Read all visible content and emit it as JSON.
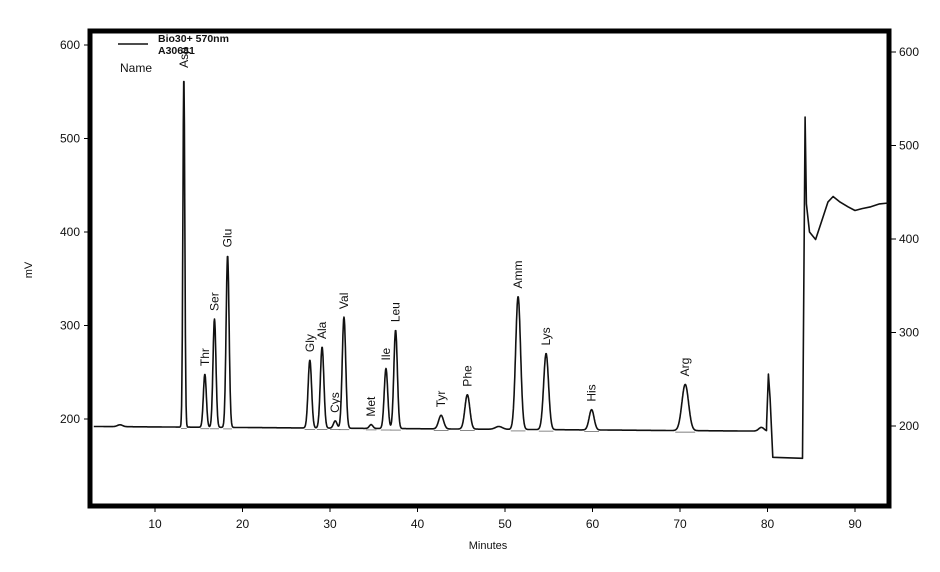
{
  "legend": {
    "series_label": "Bio30+ 570nm",
    "sample_id": "A30681",
    "name_header": "Name"
  },
  "axes": {
    "x_title": "Minutes",
    "y_title_left": "mV"
  },
  "chart_data": {
    "type": "line",
    "title": "",
    "xlabel": "Minutes",
    "ylabel": "mV",
    "xlim": [
      3,
      94
    ],
    "ylim_left": [
      110,
      620
    ],
    "ylim_right": [
      110,
      620
    ],
    "x_ticks": [
      10,
      20,
      30,
      40,
      50,
      60,
      70,
      80,
      90
    ],
    "y_ticks_left": [
      200,
      300,
      400,
      500,
      600
    ],
    "y_ticks_right": [
      200,
      300,
      400,
      500,
      600
    ],
    "grid": false,
    "legend_position": "top-left",
    "series": [
      {
        "name": "Bio30+ 570nm",
        "baseline_mV": 192
      }
    ],
    "peaks": [
      {
        "name": "Asp",
        "time_min": 13.3,
        "height_mV": 567
      },
      {
        "name": "Thr",
        "time_min": 15.7,
        "height_mV": 248
      },
      {
        "name": "Ser",
        "time_min": 16.8,
        "height_mV": 307
      },
      {
        "name": "Glu",
        "time_min": 18.3,
        "height_mV": 375
      },
      {
        "name": "Gly",
        "time_min": 27.7,
        "height_mV": 263
      },
      {
        "name": "Ala",
        "time_min": 29.1,
        "height_mV": 277
      },
      {
        "name": "Cys",
        "time_min": 30.6,
        "height_mV": 198
      },
      {
        "name": "Val",
        "time_min": 31.6,
        "height_mV": 309
      },
      {
        "name": "Met",
        "time_min": 34.7,
        "height_mV": 194
      },
      {
        "name": "Ile",
        "time_min": 36.4,
        "height_mV": 254
      },
      {
        "name": "Leu",
        "time_min": 37.5,
        "height_mV": 295
      },
      {
        "name": "Tyr",
        "time_min": 42.7,
        "height_mV": 204
      },
      {
        "name": "Phe",
        "time_min": 45.7,
        "height_mV": 226
      },
      {
        "name": "Amm",
        "time_min": 51.5,
        "height_mV": 331
      },
      {
        "name": "Lys",
        "time_min": 54.7,
        "height_mV": 270
      },
      {
        "name": "His",
        "time_min": 59.9,
        "height_mV": 210
      },
      {
        "name": "Arg",
        "time_min": 70.6,
        "height_mV": 237
      }
    ],
    "events": [
      {
        "description": "spike",
        "time_min": 80.1,
        "value_mV": 248
      },
      {
        "description": "negative step",
        "time_min_start": 80.6,
        "time_min_end": 84.0,
        "value_mV": 159
      },
      {
        "description": "large positive spike",
        "time_min": 84.3,
        "value_mV": 523
      },
      {
        "description": "dip",
        "time_min": 85.5,
        "value_mV": 392
      },
      {
        "description": "hump",
        "time_min": 87.5,
        "value_mV": 438
      },
      {
        "description": "end value",
        "time_min": 93.8,
        "value_mV": 431
      }
    ]
  },
  "colors": {
    "trace": "#111111",
    "frame": "#000000",
    "background": "#ffffff"
  }
}
